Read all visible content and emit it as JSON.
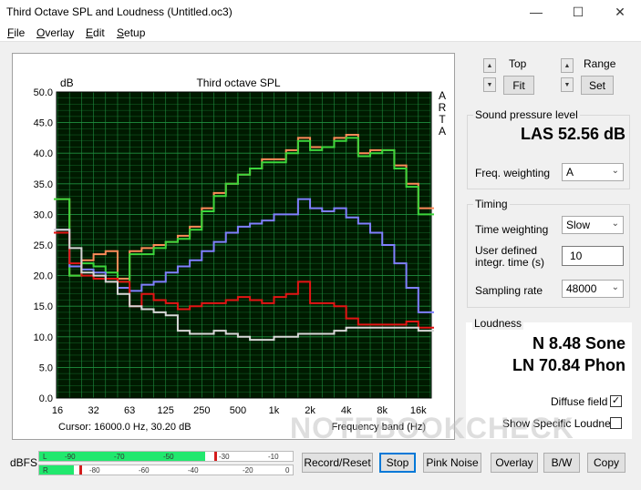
{
  "window": {
    "title": "Third Octave SPL and Loudness (Untitled.oc3)",
    "minimize_label": "—",
    "maximize_label": "☐",
    "close_label": "✕"
  },
  "menu": [
    "File",
    "Overlay",
    "Edit",
    "Setup"
  ],
  "chart_data": {
    "type": "line",
    "title": "Third octave SPL",
    "ylabel": "dB",
    "xlabel": "Frequency band (Hz)",
    "side_label": [
      "A",
      "R",
      "T",
      "A"
    ],
    "ylim": [
      0,
      50
    ],
    "ytick_labels": [
      "0.0",
      "5.0",
      "10.0",
      "15.0",
      "20.0",
      "25.0",
      "30.0",
      "35.0",
      "40.0",
      "45.0",
      "50.0"
    ],
    "xtick_labels": [
      "16",
      "32",
      "63",
      "125",
      "250",
      "500",
      "1k",
      "2k",
      "4k",
      "8k",
      "16k"
    ],
    "bands": [
      "16",
      "20",
      "25",
      "31.5",
      "40",
      "50",
      "63",
      "80",
      "100",
      "125",
      "160",
      "200",
      "250",
      "315",
      "400",
      "500",
      "630",
      "800",
      "1k",
      "1.25k",
      "1.6k",
      "2k",
      "2.5k",
      "3.15k",
      "4k",
      "5k",
      "6.3k",
      "8k",
      "10k",
      "12.5k",
      "16k",
      "20k"
    ],
    "grid": true,
    "background": "#001a00",
    "grid_color": "#1f8f3f",
    "series": [
      {
        "color": "#ff8c5a",
        "values": [
          32.5,
          20.0,
          22.5,
          23.5,
          24.0,
          19.5,
          24.0,
          24.5,
          25.0,
          25.5,
          26.5,
          28.0,
          31.0,
          33.5,
          35.0,
          36.5,
          37.5,
          39.0,
          39.0,
          40.5,
          42.5,
          41.0,
          41.0,
          42.5,
          43.0,
          40.0,
          40.5,
          40.5,
          38.0,
          35.0,
          31.0,
          31.0
        ]
      },
      {
        "color": "#3cd63c",
        "values": [
          32.5,
          20.0,
          22.0,
          21.5,
          20.5,
          19.0,
          23.5,
          23.5,
          24.5,
          25.5,
          26.0,
          27.5,
          30.5,
          33.0,
          35.0,
          36.5,
          37.5,
          38.5,
          38.5,
          40.0,
          42.0,
          40.5,
          41.0,
          42.0,
          42.5,
          39.5,
          40.0,
          40.5,
          37.5,
          34.5,
          30.0,
          30.0
        ]
      },
      {
        "color": "#8080ff",
        "values": [
          27.5,
          21.5,
          21.0,
          20.5,
          19.5,
          18.0,
          17.5,
          18.5,
          19.0,
          20.5,
          21.5,
          22.5,
          24.0,
          25.5,
          27.0,
          28.0,
          28.5,
          29.0,
          30.0,
          30.0,
          32.5,
          31.0,
          30.5,
          31.0,
          29.5,
          28.5,
          27.0,
          25.0,
          22.0,
          18.0,
          14.0,
          14.0
        ]
      },
      {
        "color": "#e31515",
        "values": [
          27.0,
          22.0,
          20.0,
          19.5,
          19.5,
          19.0,
          15.0,
          17.0,
          16.0,
          15.5,
          14.5,
          15.0,
          15.5,
          15.5,
          16.0,
          16.5,
          16.0,
          15.5,
          16.5,
          17.0,
          19.0,
          15.5,
          15.5,
          15.0,
          13.0,
          12.0,
          12.0,
          12.0,
          12.0,
          12.5,
          11.5,
          11.5
        ]
      },
      {
        "color": "#d8d8d8",
        "values": [
          27.5,
          24.5,
          20.5,
          20.0,
          19.0,
          17.0,
          15.0,
          14.5,
          14.0,
          13.5,
          11.0,
          10.5,
          10.5,
          11.0,
          10.5,
          10.0,
          9.5,
          9.5,
          10.0,
          10.0,
          10.5,
          10.5,
          10.5,
          11.0,
          11.5,
          11.5,
          11.5,
          11.5,
          11.5,
          11.5,
          11.0,
          11.0
        ]
      }
    ]
  },
  "cursor_readout": "Cursor: 16000.0 Hz, 30.20 dB",
  "scale_controls": {
    "top_label": "Top",
    "range_label": "Range",
    "fit_label": "Fit",
    "set_label": "Set",
    "up_arrow": "▲",
    "down_arrow": "▼"
  },
  "spl": {
    "title": "Sound pressure level",
    "value": "LAS 52.56 dB",
    "freq_weighting_label": "Freq. weighting",
    "freq_weighting_value": "A"
  },
  "timing": {
    "title": "Timing",
    "time_weighting_label": "Time weighting",
    "time_weighting_value": "Slow",
    "integr_label_line1": "User defined",
    "integr_label_line2": "integr. time (s)",
    "integr_value": "10",
    "sampling_rate_label": "Sampling rate",
    "sampling_rate_value": "48000"
  },
  "loudness": {
    "title": "Loudness",
    "n_value": "N 8.48 Sone",
    "ln_value": "LN 70.84 Phon",
    "diffuse_field_label": "Diffuse field",
    "diffuse_field_checked": "✓",
    "show_specific_label": "Show Specific Loudness"
  },
  "meter": {
    "label": "dBFS",
    "channel_l": "L",
    "channel_r": "R",
    "l_ticks": [
      "-90",
      "-70",
      "-50",
      "-30",
      "-10"
    ],
    "r_ticks": [
      "-80",
      "-60",
      "-40",
      "-20",
      "0"
    ],
    "l_level_dbfs": -33,
    "r_level_dbfs": -83,
    "fill_color": "#21e86e"
  },
  "buttons": {
    "record_reset": "Record/Reset",
    "stop": "Stop",
    "pink_noise": "Pink Noise",
    "overlay": "Overlay",
    "bw": "B/W",
    "copy": "Copy"
  },
  "watermark": "NOTEBOOKCHECK"
}
